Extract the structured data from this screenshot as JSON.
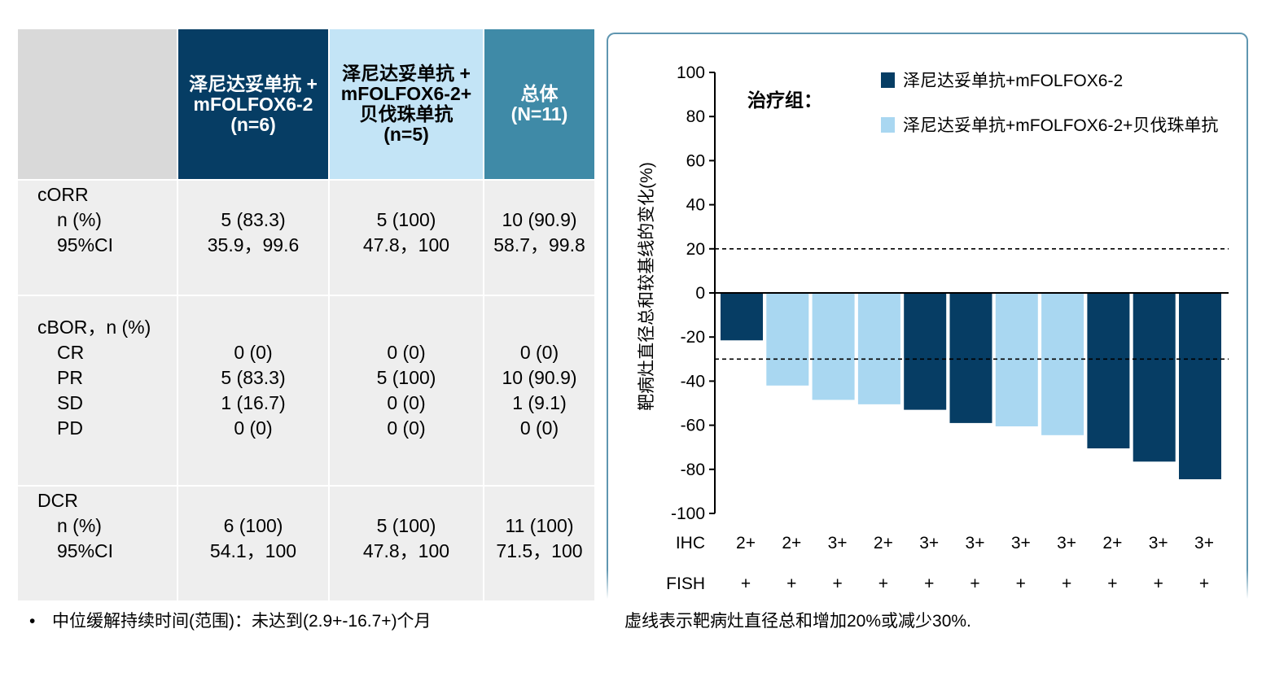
{
  "table": {
    "headers": [
      {
        "lines": [
          "泽尼达妥单抗 +",
          "mFOLFOX6-2",
          "(n=6)"
        ],
        "bg": "#063d64",
        "color": "#ffffff"
      },
      {
        "lines": [
          "泽尼达妥单抗 +",
          "mFOLFOX6-2+",
          "贝伐珠单抗",
          "(n=5)"
        ],
        "bg": "#c3e4f6",
        "color": "#000000"
      },
      {
        "lines": [
          "总体",
          "(N=11)"
        ],
        "bg": "#3f8aa7",
        "color": "#ffffff"
      }
    ],
    "sections": [
      {
        "label": "cORR",
        "rows": [
          "n (%)",
          "95%CI"
        ],
        "values": [
          [
            "5 (83.3)",
            "35.9，99.6"
          ],
          [
            "5 (100)",
            "47.8，100"
          ],
          [
            "10 (90.9)",
            "58.7，99.8"
          ]
        ]
      },
      {
        "label": "cBOR，n (%)",
        "rows": [
          "CR",
          "PR",
          "SD",
          "PD"
        ],
        "values": [
          [
            "0 (0)",
            "5 (83.3)",
            "1 (16.7)",
            "0 (0)"
          ],
          [
            "0 (0)",
            "5 (100)",
            "0 (0)",
            "0 (0)"
          ],
          [
            "0 (0)",
            "10 (90.9)",
            "1 (9.1)",
            "0 (0)"
          ]
        ]
      },
      {
        "label": "DCR",
        "rows": [
          "n (%)",
          "95%CI"
        ],
        "values": [
          [
            "6 (100)",
            "54.1，100"
          ],
          [
            "5 (100)",
            "47.8，100"
          ],
          [
            "11 (100)",
            "71.5，100"
          ]
        ]
      }
    ],
    "footnote": "中位缓解持续时间(范围)：未达到(2.9+-16.7+)个月",
    "bullet": "•"
  },
  "colors": {
    "dark": "#063d64",
    "light": "#a9d7f1",
    "mid": "#3f8aa7",
    "header_empty": "#d9d9d9",
    "body": "#eeeeee"
  },
  "chart_data": {
    "type": "bar",
    "ylabel": "靶病灶直径总和较基线的变化(%)",
    "ylim": [
      -100,
      100
    ],
    "yticks": [
      100,
      80,
      60,
      40,
      20,
      0,
      -20,
      -40,
      -60,
      -80,
      -100
    ],
    "reference_lines": [
      20,
      -30
    ],
    "legend_title": "治疗组：",
    "series": [
      {
        "name": "泽尼达妥单抗+mFOLFOX6-2",
        "color": "#063d64"
      },
      {
        "name": "泽尼达妥单抗+mFOLFOX6-2+贝伐珠单抗",
        "color": "#a9d7f1"
      }
    ],
    "bars": [
      {
        "value": -21.5,
        "series": 0,
        "ihc": "2+",
        "fish": "+"
      },
      {
        "value": -42,
        "series": 1,
        "ihc": "2+",
        "fish": "+"
      },
      {
        "value": -48.5,
        "series": 1,
        "ihc": "3+",
        "fish": "+"
      },
      {
        "value": -50.5,
        "series": 1,
        "ihc": "2+",
        "fish": "+"
      },
      {
        "value": -53,
        "series": 0,
        "ihc": "3+",
        "fish": "+"
      },
      {
        "value": -59,
        "series": 0,
        "ihc": "3+",
        "fish": "+"
      },
      {
        "value": -60.5,
        "series": 1,
        "ihc": "3+",
        "fish": "+"
      },
      {
        "value": -64.5,
        "series": 1,
        "ihc": "3+",
        "fish": "+"
      },
      {
        "value": -70.5,
        "series": 0,
        "ihc": "2+",
        "fish": "+"
      },
      {
        "value": -76.5,
        "series": 0,
        "ihc": "3+",
        "fish": "+"
      },
      {
        "value": -84.5,
        "series": 0,
        "ihc": "3+",
        "fish": "+"
      }
    ],
    "row_labels": {
      "ihc": "IHC",
      "fish": "FISH"
    },
    "note": "虚线表示靶病灶直径总和增加20%或减少30%."
  }
}
